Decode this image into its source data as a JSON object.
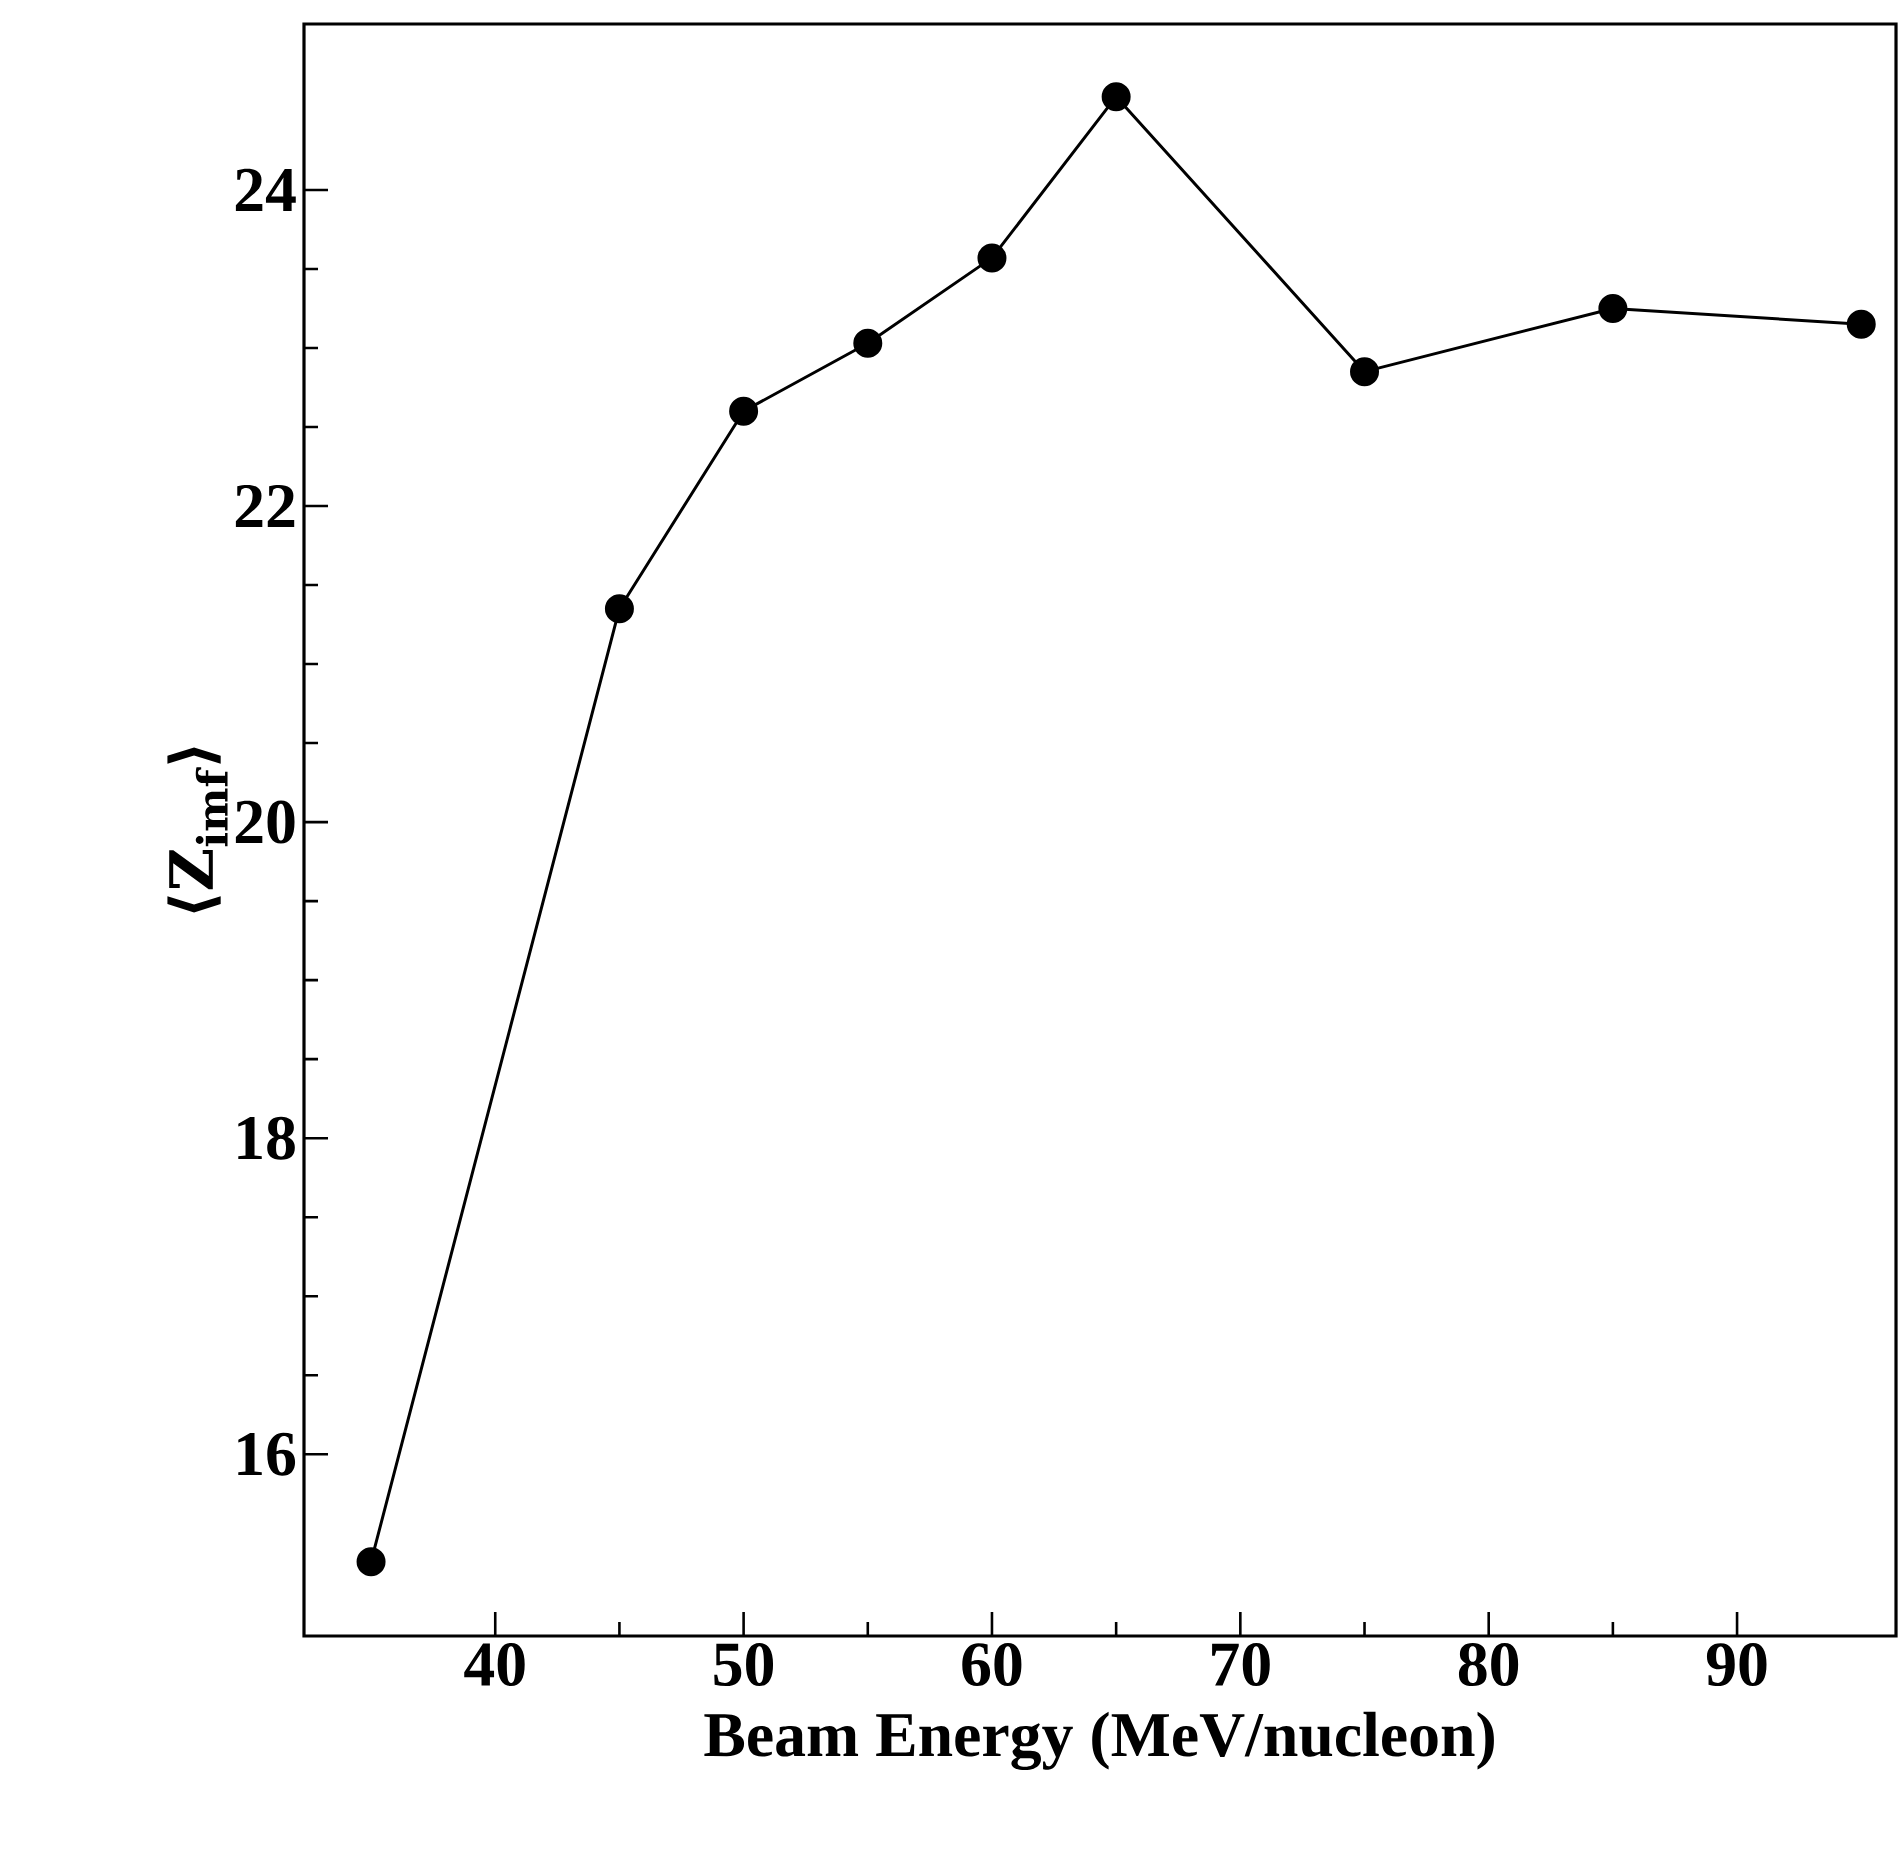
{
  "chart_data": {
    "type": "line",
    "xlabel": "Beam Energy (MeV/nucleon)",
    "ylabel": "⟨Z$_{imf}$⟩",
    "x": [
      35,
      45,
      50,
      55,
      60,
      65,
      75,
      85,
      95
    ],
    "series": [
      {
        "color": "#000000",
        "values": [
          15.32,
          21.35,
          22.6,
          23.03,
          23.57,
          24.59,
          22.85,
          23.25,
          23.15
        ]
      }
    ],
    "xlim": [
      32.3,
      96.4
    ],
    "ylim": [
      14.85,
      25.05
    ],
    "xticks": [
      40,
      50,
      60,
      70,
      80,
      90
    ],
    "yticks": [
      16,
      18,
      20,
      22,
      24
    ],
    "marker": "circle",
    "line_style": "solid",
    "grid": false
  }
}
